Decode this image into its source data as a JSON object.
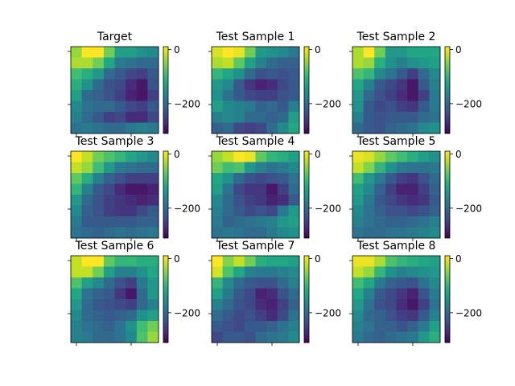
{
  "chart_data": {
    "type": "heatmap",
    "layout": "3x3 grid of heatmaps, each with its own colorbar on the right",
    "colormap": "viridis",
    "color_range": [
      -310,
      10
    ],
    "colorbar_ticks": [
      {
        "value": 0,
        "label": "0"
      },
      {
        "value": -200,
        "label": "−200"
      }
    ],
    "panels": [
      {
        "title": "Target",
        "values": [
          [
            -40,
            10,
            10,
            -60,
            -130,
            -130,
            -150,
            -160
          ],
          [
            -30,
            -30,
            -60,
            -120,
            -180,
            -190,
            -200,
            -200
          ],
          [
            -90,
            -110,
            -140,
            -200,
            -220,
            -240,
            -250,
            -220
          ],
          [
            -110,
            -150,
            -200,
            -230,
            -240,
            -270,
            -290,
            -230
          ],
          [
            -130,
            -200,
            -210,
            -230,
            -250,
            -280,
            -290,
            -250
          ],
          [
            -160,
            -190,
            -200,
            -200,
            -220,
            -240,
            -250,
            -220
          ],
          [
            -170,
            -200,
            -220,
            -250,
            -240,
            -270,
            -270,
            -240
          ],
          [
            -190,
            -180,
            -190,
            -200,
            -200,
            -180,
            -170,
            -180
          ]
        ]
      },
      {
        "title": "Test Sample 1",
        "values": [
          [
            -10,
            10,
            0,
            -60,
            -140,
            -150,
            -160,
            -180
          ],
          [
            -30,
            -20,
            -70,
            -130,
            -170,
            -200,
            -210,
            -210
          ],
          [
            -100,
            -120,
            -150,
            -200,
            -230,
            -220,
            -230,
            -220
          ],
          [
            -140,
            -160,
            -220,
            -260,
            -280,
            -270,
            -240,
            -220
          ],
          [
            -150,
            -190,
            -220,
            -240,
            -250,
            -250,
            -230,
            -220
          ],
          [
            -130,
            -160,
            -170,
            -180,
            -210,
            -200,
            -220,
            -170
          ],
          [
            -170,
            -160,
            -170,
            -200,
            -200,
            -210,
            -200,
            -130
          ],
          [
            -210,
            -200,
            -240,
            -250,
            -240,
            -200,
            -160,
            -120
          ]
        ]
      },
      {
        "title": "Test Sample 2",
        "values": [
          [
            -30,
            10,
            -60,
            -140,
            -140,
            -120,
            -120,
            -120
          ],
          [
            -30,
            -40,
            -110,
            -150,
            -170,
            -150,
            -140,
            -130
          ],
          [
            -80,
            -100,
            -160,
            -190,
            -220,
            -250,
            -200,
            -160
          ],
          [
            -120,
            -170,
            -220,
            -240,
            -260,
            -290,
            -220,
            -170
          ],
          [
            -140,
            -200,
            -230,
            -250,
            -270,
            -290,
            -250,
            -180
          ],
          [
            -150,
            -220,
            -240,
            -230,
            -250,
            -260,
            -220,
            -180
          ],
          [
            -170,
            -220,
            -230,
            -220,
            -220,
            -220,
            -200,
            -190
          ],
          [
            -200,
            -220,
            -230,
            -210,
            -200,
            -190,
            -160,
            -150
          ]
        ]
      },
      {
        "title": "Test Sample 3",
        "values": [
          [
            10,
            -20,
            -60,
            -80,
            -100,
            -120,
            -140,
            -160
          ],
          [
            -20,
            -40,
            -90,
            -140,
            -180,
            -190,
            -200,
            -200
          ],
          [
            -70,
            -110,
            -170,
            -210,
            -230,
            -250,
            -250,
            -250
          ],
          [
            -100,
            -170,
            -220,
            -240,
            -270,
            -290,
            -290,
            -280
          ],
          [
            -140,
            -200,
            -230,
            -250,
            -260,
            -270,
            -280,
            -270
          ],
          [
            -160,
            -210,
            -230,
            -250,
            -260,
            -260,
            -240,
            -220
          ],
          [
            -180,
            -220,
            -220,
            -220,
            -220,
            -220,
            -210,
            -210
          ],
          [
            -190,
            -200,
            -210,
            -200,
            -190,
            -200,
            -190,
            -180
          ]
        ]
      },
      {
        "title": "Test Sample 4",
        "values": [
          [
            -40,
            -20,
            10,
            0,
            -70,
            -100,
            -110,
            -130
          ],
          [
            -60,
            -90,
            -80,
            -140,
            -170,
            -190,
            -180,
            -160
          ],
          [
            -120,
            -150,
            -200,
            -230,
            -240,
            -230,
            -220,
            -190
          ],
          [
            -130,
            -190,
            -240,
            -260,
            -260,
            -290,
            -250,
            -200
          ],
          [
            -160,
            -200,
            -230,
            -250,
            -260,
            -280,
            -270,
            -220
          ],
          [
            -170,
            -200,
            -220,
            -240,
            -230,
            -240,
            -180,
            -140
          ],
          [
            -180,
            -210,
            -200,
            -190,
            -180,
            -170,
            -140,
            -130
          ],
          [
            -190,
            -180,
            -190,
            -200,
            -200,
            -180,
            -160,
            -150
          ]
        ]
      },
      {
        "title": "Test Sample 5",
        "values": [
          [
            0,
            -10,
            -40,
            -70,
            -90,
            -110,
            -130,
            -150
          ],
          [
            -20,
            -50,
            -100,
            -150,
            -180,
            -190,
            -190,
            -180
          ],
          [
            -90,
            -140,
            -180,
            -220,
            -250,
            -260,
            -230,
            -200
          ],
          [
            -130,
            -160,
            -210,
            -250,
            -280,
            -280,
            -250,
            -210
          ],
          [
            -140,
            -180,
            -220,
            -240,
            -260,
            -270,
            -260,
            -220
          ],
          [
            -160,
            -190,
            -210,
            -230,
            -230,
            -240,
            -230,
            -210
          ],
          [
            -170,
            -190,
            -200,
            -210,
            -210,
            -200,
            -190,
            -170
          ],
          [
            -190,
            -200,
            -200,
            -190,
            -190,
            -180,
            -170,
            -160
          ]
        ]
      },
      {
        "title": "Test Sample 6",
        "values": [
          [
            -20,
            10,
            10,
            -70,
            -100,
            -100,
            -110,
            -110
          ],
          [
            -20,
            -20,
            -60,
            -130,
            -170,
            -170,
            -150,
            -120
          ],
          [
            -80,
            -130,
            -160,
            -200,
            -230,
            -250,
            -180,
            -140
          ],
          [
            -120,
            -190,
            -210,
            -220,
            -260,
            -290,
            -200,
            -140
          ],
          [
            -140,
            -200,
            -220,
            -230,
            -240,
            -250,
            -200,
            -170
          ],
          [
            -160,
            -200,
            -210,
            -220,
            -210,
            -200,
            -150,
            -130
          ],
          [
            -170,
            -190,
            -200,
            -210,
            -190,
            -150,
            -90,
            -60
          ],
          [
            -170,
            -180,
            -200,
            -200,
            -190,
            -160,
            -80,
            -40
          ]
        ]
      },
      {
        "title": "Test Sample 7",
        "values": [
          [
            10,
            -50,
            -20,
            -60,
            -110,
            -120,
            -120,
            -130
          ],
          [
            -10,
            -80,
            -120,
            -170,
            -180,
            -180,
            -170,
            -160
          ],
          [
            -100,
            -160,
            -200,
            -220,
            -230,
            -230,
            -200,
            -170
          ],
          [
            -130,
            -180,
            -220,
            -240,
            -280,
            -270,
            -230,
            -200
          ],
          [
            -170,
            -200,
            -230,
            -240,
            -270,
            -280,
            -250,
            -210
          ],
          [
            -200,
            -220,
            -240,
            -230,
            -250,
            -270,
            -240,
            -190
          ],
          [
            -220,
            -230,
            -240,
            -220,
            -220,
            -210,
            -190,
            -170
          ],
          [
            -240,
            -220,
            -220,
            -230,
            -200,
            -190,
            -180,
            -160
          ]
        ]
      },
      {
        "title": "Test Sample 8",
        "values": [
          [
            0,
            0,
            -30,
            -80,
            -100,
            -110,
            -120,
            -130
          ],
          [
            -20,
            -40,
            -100,
            -150,
            -170,
            -160,
            -150,
            -140
          ],
          [
            -90,
            -120,
            -180,
            -210,
            -220,
            -230,
            -190,
            -160
          ],
          [
            -120,
            -170,
            -220,
            -240,
            -260,
            -280,
            -230,
            -180
          ],
          [
            -140,
            -190,
            -230,
            -240,
            -270,
            -290,
            -250,
            -190
          ],
          [
            -160,
            -200,
            -210,
            -230,
            -250,
            -260,
            -220,
            -170
          ],
          [
            -170,
            -190,
            -210,
            -210,
            -230,
            -210,
            -180,
            -130
          ],
          [
            -180,
            -200,
            -210,
            -200,
            -190,
            -180,
            -140,
            -110
          ]
        ]
      }
    ]
  }
}
